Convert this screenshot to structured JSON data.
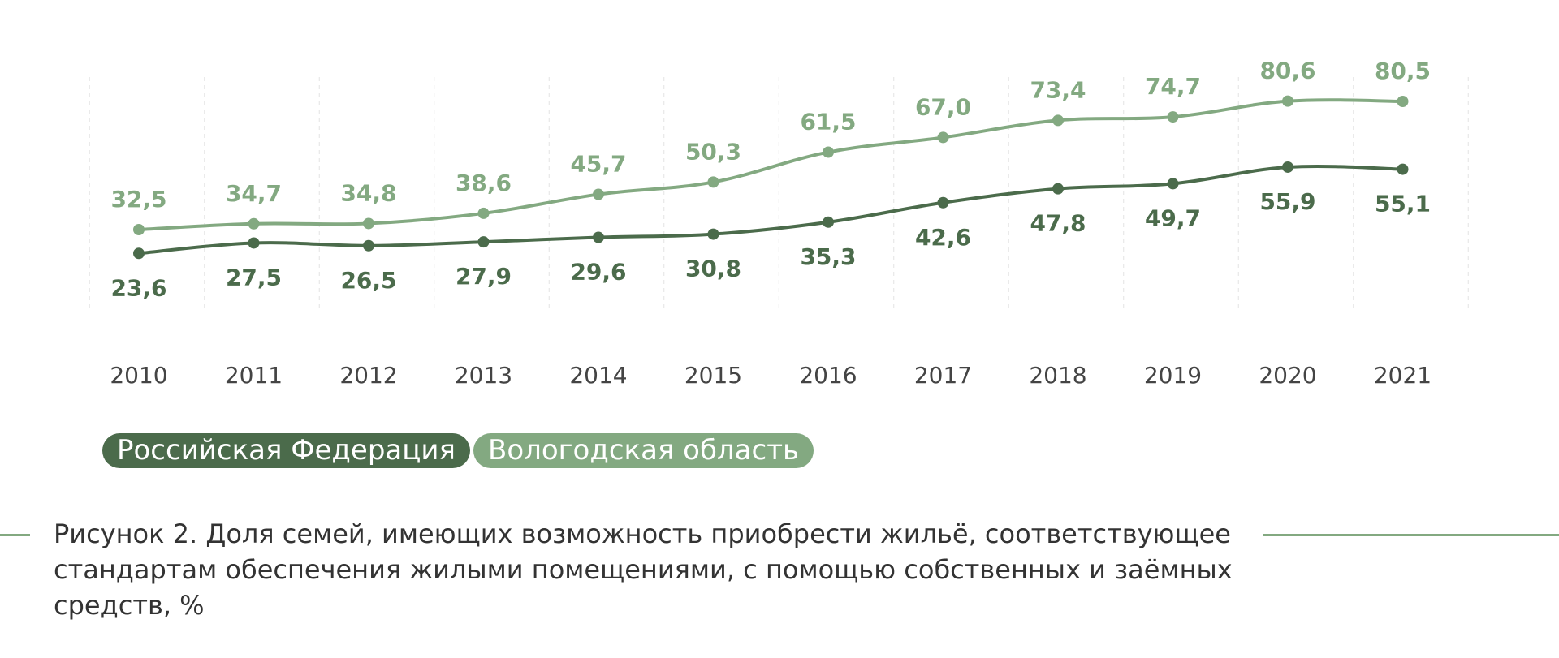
{
  "chart_data": {
    "type": "line",
    "x": [
      "2010",
      "2011",
      "2012",
      "2013",
      "2014",
      "2015",
      "2016",
      "2017",
      "2018",
      "2019",
      "2020",
      "2021"
    ],
    "series": [
      {
        "name": "Российская Федерация",
        "color": "#4b6b4b",
        "values": [
          23.6,
          27.5,
          26.5,
          27.9,
          29.6,
          30.8,
          35.3,
          42.6,
          47.8,
          49.7,
          55.9,
          55.1
        ],
        "labels": [
          "23,6",
          "27,5",
          "26,5",
          "27,9",
          "29,6",
          "30,8",
          "35,3",
          "42,6",
          "47,8",
          "49,7",
          "55,9",
          "55,1"
        ],
        "label_position": "below"
      },
      {
        "name": "Вологодская область",
        "color": "#83a981",
        "values": [
          32.5,
          34.7,
          34.8,
          38.6,
          45.7,
          50.3,
          61.5,
          67.0,
          73.4,
          74.7,
          80.6,
          80.5
        ],
        "labels": [
          "32,5",
          "34,7",
          "34,8",
          "38,6",
          "45,7",
          "50,3",
          "61,5",
          "67,0",
          "73,4",
          "74,7",
          "80,6",
          "80,5"
        ],
        "label_position": "above"
      }
    ],
    "grid": "vertical-dashed",
    "legend": "bottom-left"
  },
  "legend": {
    "rf": "Российская Федерация",
    "vo": "Вологодская область"
  },
  "caption": "Рисунок 2. Доля семей, имеющих возможность приобрести жильё, соответствующее стандартам обеспечения жилыми помещениями, с помощью собственных и заёмных средств, %"
}
